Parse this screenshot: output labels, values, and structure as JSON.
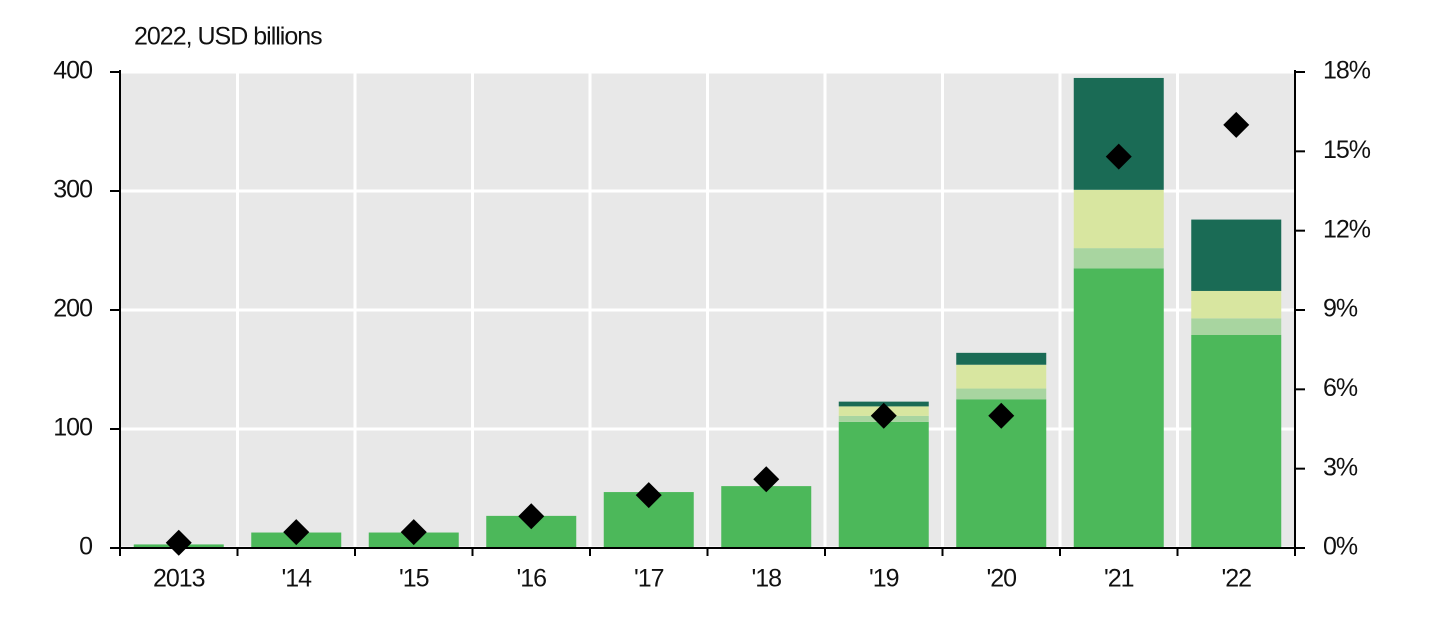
{
  "chart_data": {
    "type": "bar",
    "stacked": true,
    "y_label": "2022, USD billions",
    "categories": [
      "2013",
      "'14",
      "'15",
      "'16",
      "'17",
      "'18",
      "'19",
      "'20",
      "'21",
      "'22"
    ],
    "series": [
      {
        "color": "#4cb85a",
        "values": [
          3,
          13,
          13,
          27,
          47,
          52,
          106,
          125,
          235,
          179
        ]
      },
      {
        "color": "#a8d5a0",
        "values": [
          0,
          0,
          0,
          0,
          0,
          0,
          5,
          9,
          17,
          14
        ]
      },
      {
        "color": "#d8e6a0",
        "values": [
          0,
          0,
          0,
          0,
          0,
          0,
          8,
          20,
          49,
          23
        ]
      },
      {
        "color": "#1a6b55",
        "values": [
          0,
          0,
          0,
          0,
          0,
          0,
          4,
          10,
          94,
          60
        ]
      },
      {
        "color": "#000000",
        "marker": "diamond",
        "axis": "y2",
        "values": [
          0.2,
          0.6,
          0.6,
          1.2,
          2.0,
          2.6,
          5.0,
          5.0,
          14.8,
          16.0
        ]
      }
    ],
    "ylim": [
      0,
      400
    ],
    "yticks": [
      0,
      100,
      200,
      300,
      400
    ],
    "y2lim": [
      0,
      18
    ],
    "y2ticks": [
      {
        "value": 0,
        "label": "0%"
      },
      {
        "value": 3,
        "label": "3%"
      },
      {
        "value": 6,
        "label": "6%"
      },
      {
        "value": 9,
        "label": "9%"
      },
      {
        "value": 12,
        "label": "12%"
      },
      {
        "value": 15,
        "label": "15%"
      },
      {
        "value": 18,
        "label": "18%"
      }
    ],
    "grid": true,
    "background": "#e8e8e8"
  }
}
